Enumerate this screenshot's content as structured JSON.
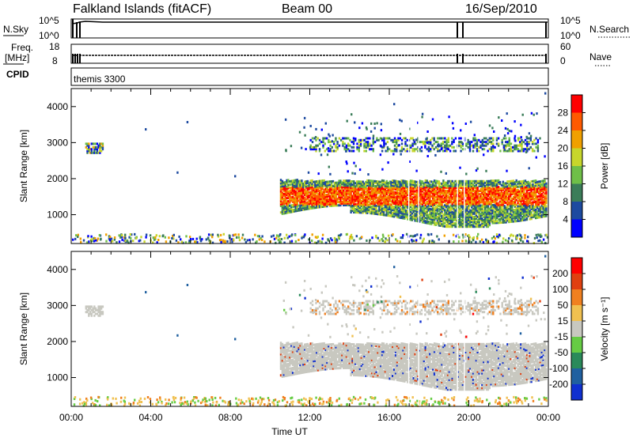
{
  "header": {
    "station": "Falkland Islands (fitACF)",
    "beam": "Beam 00",
    "date": "16/Sep/2010"
  },
  "status_panels": {
    "nsky_label": "N.Sky",
    "nsky_ticks": [
      "10^5",
      "10^0"
    ],
    "nsearch_label": "N.Search",
    "nsearch_ticks": [
      "10^5",
      "10^0"
    ],
    "freq_label": "Freq.",
    "freq_unit": "[MHz]",
    "freq_ticks": [
      "18",
      "8"
    ],
    "nave_label": "Nave",
    "nave_ticks": [
      "60",
      "0"
    ],
    "cpid_label": "CPID",
    "cpid_value": "themis 3300"
  },
  "chart_data": [
    {
      "type": "heatmap",
      "name": "power",
      "ylabel": "Slant Range [km]",
      "xlabel": "",
      "ylim": [
        200,
        4500
      ],
      "yticks": [
        1000,
        2000,
        3000,
        4000
      ],
      "xlim_hours": [
        0,
        24
      ],
      "colorbar": {
        "label": "Power [dB]",
        "ticks": [
          "4",
          "8",
          "12",
          "16",
          "20",
          "24",
          "28"
        ],
        "levels": [
          {
            "color": "#0000ff",
            "value": 2
          },
          {
            "color": "#1d4aa0",
            "value": 6
          },
          {
            "color": "#3b7d59",
            "value": 10
          },
          {
            "color": "#6fbf48",
            "value": 14
          },
          {
            "color": "#c7d62b",
            "value": 18
          },
          {
            "color": "#f0a000",
            "value": 22
          },
          {
            "color": "#ff5a00",
            "value": 26
          },
          {
            "color": "#ff0000",
            "value": 30
          }
        ]
      }
    },
    {
      "type": "heatmap",
      "name": "velocity",
      "ylabel": "Slant Range [km]",
      "xlabel": "Time UT",
      "ylim": [
        200,
        4500
      ],
      "yticks": [
        1000,
        2000,
        3000,
        4000
      ],
      "xlim_hours": [
        0,
        24
      ],
      "xticks": [
        "00:00",
        "04:00",
        "08:00",
        "12:00",
        "16:00",
        "20:00",
        "00:00"
      ],
      "colorbar": {
        "label": "Velocity [m s⁻¹]",
        "ticks": [
          "200",
          "100",
          "50",
          "15",
          "-15",
          "-50",
          "-100",
          "-200"
        ],
        "levels": [
          {
            "color": "#1030d0",
            "value": 250
          },
          {
            "color": "#2060a0",
            "value": 150
          },
          {
            "color": "#2a8a5a",
            "value": 75
          },
          {
            "color": "#66cc44",
            "value": 32
          },
          {
            "color": "#c8c8c0",
            "value": 0
          },
          {
            "color": "#f0c050",
            "value": -32
          },
          {
            "color": "#f08020",
            "value": -75
          },
          {
            "color": "#e04010",
            "value": -150
          },
          {
            "color": "#ff0000",
            "value": -250
          }
        ]
      }
    }
  ]
}
